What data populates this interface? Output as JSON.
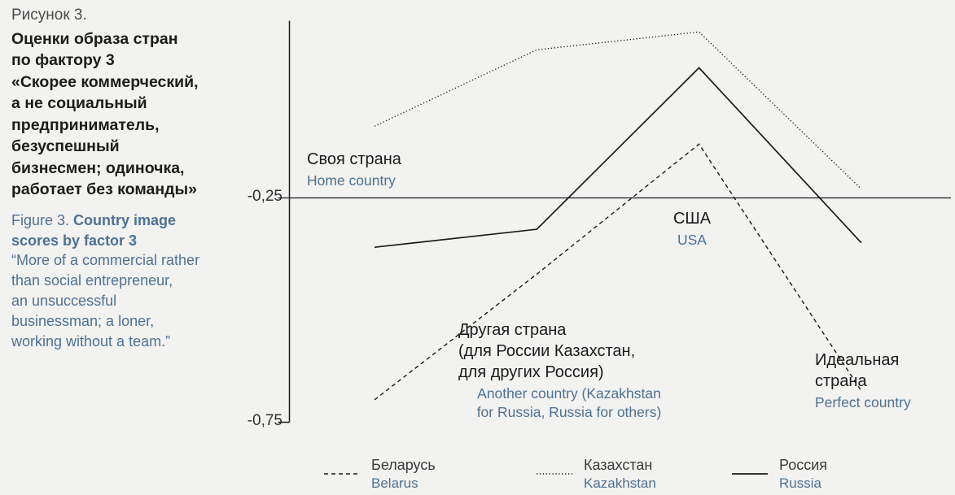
{
  "page": {
    "background": "#f2f2f0"
  },
  "caption": {
    "figure_label_ru": "Рисунок 3.",
    "title_ru": "Оценки образа стран\nпо фактору 3\n«Скорее коммерческий,\nа не социальный\nпредприниматель,\nбезуспешный\nбизнесмен; одиночка,\nработает без команды»",
    "figure_label_en": "Figure 3. ",
    "title_en": "Country image\nscores by factor 3",
    "quote_en": "“More of a commercial rather\nthan social entrepreneur,\nan unsuccessful\nbusinessman; a loner,\nworking without a team.”"
  },
  "axis": {
    "y_tick_upper": "-0,25",
    "y_tick_lower": "-0,75"
  },
  "annotations": {
    "home": {
      "ru": "Своя страна",
      "en": "Home country"
    },
    "usa": {
      "ru": "США",
      "en": "USA"
    },
    "another": {
      "ru": "Другая страна\n(для России Казахстан,\nдля других Россия)",
      "en": "Another country (Kazakhstan\nfor Russia, Russia for others)"
    },
    "perfect": {
      "ru": "Идеальная\nстрана",
      "en": "Perfect country"
    }
  },
  "legend": [
    {
      "ru": "Беларусь",
      "en": "Belarus"
    },
    {
      "ru": "Казахстан",
      "en": "Kazakhstan"
    },
    {
      "ru": "Россия",
      "en": "Russia"
    }
  ],
  "chart_data": {
    "type": "line",
    "categories": [
      "Своя страна (Home country)",
      "Другая страна (Another country)",
      "США (USA)",
      "Идеальная страна (Perfect country)"
    ],
    "series": [
      {
        "name": "Беларусь / Belarus",
        "values": [
          -0.7,
          -0.42,
          -0.13,
          -0.68
        ],
        "dash": "5 4",
        "width": 1.4
      },
      {
        "name": "Казахстан / Kazakhstan",
        "values": [
          -0.09,
          0.08,
          0.12,
          -0.23
        ],
        "dash": "1.3 2.6",
        "width": 1.3
      },
      {
        "name": "Россия / Russia",
        "values": [
          -0.36,
          -0.32,
          0.04,
          -0.35
        ],
        "dash": "",
        "width": 1.7
      }
    ],
    "ylim": [
      -0.75,
      0.145
    ],
    "yticks": [
      -0.25,
      -0.75
    ],
    "reference_line": -0.25,
    "grid": "off",
    "legend_position": "bottom",
    "line_color": "#1a1a1a",
    "accent_color": "#4e7192"
  }
}
